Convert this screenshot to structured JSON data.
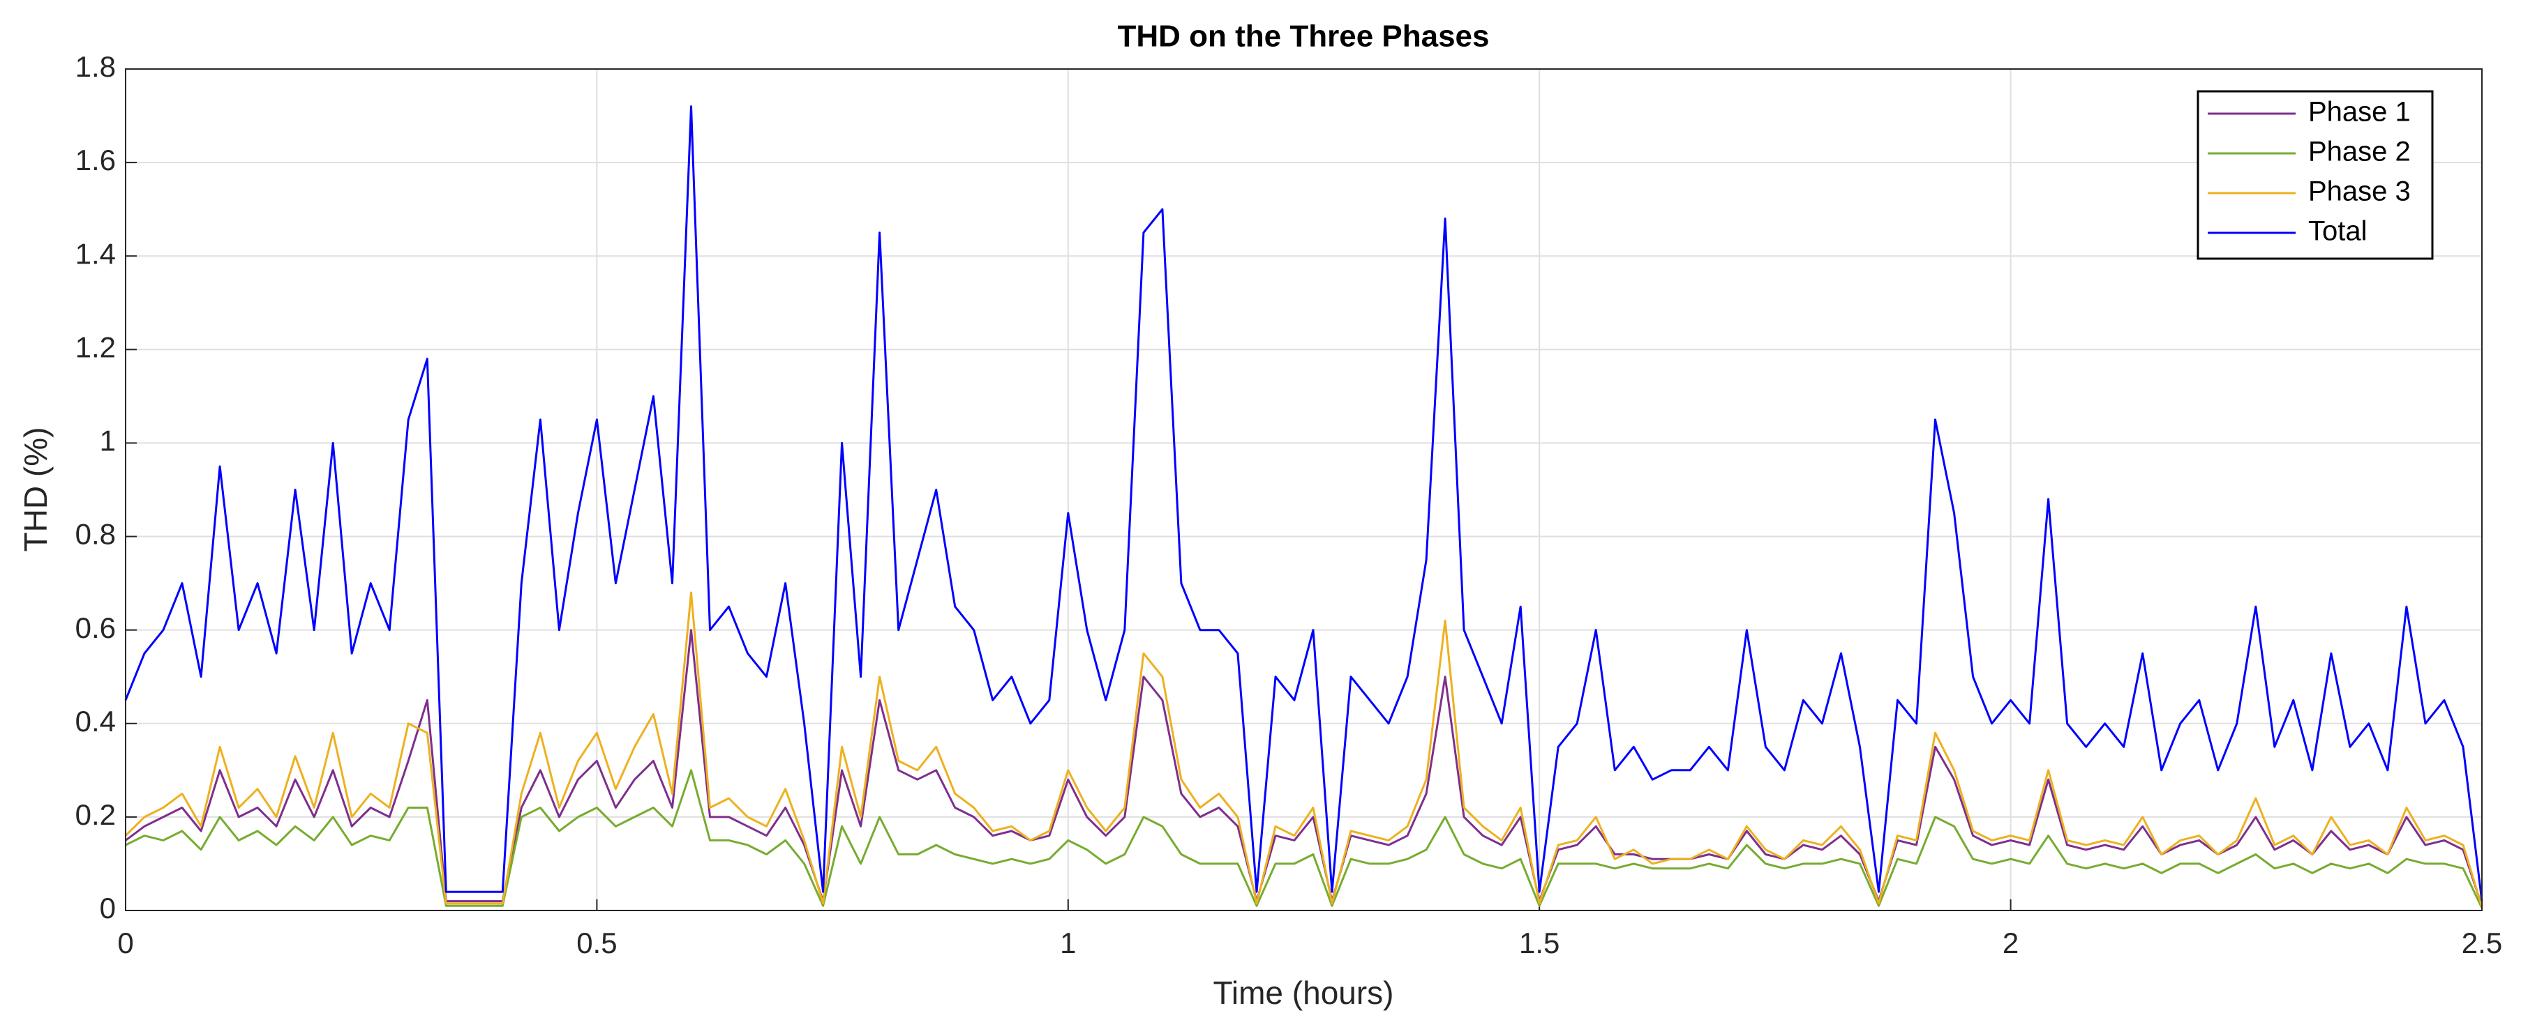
{
  "chart_data": {
    "type": "line",
    "title": "THD on the Three Phases",
    "xlabel": "Time (hours)",
    "ylabel": "THD (%)",
    "x": [
      0,
      0.02,
      0.04,
      0.06,
      0.08,
      0.1,
      0.12,
      0.14,
      0.16,
      0.18,
      0.2,
      0.22,
      0.24,
      0.26,
      0.28,
      0.3,
      0.32,
      0.34,
      0.36,
      0.38,
      0.4,
      0.42,
      0.44,
      0.46,
      0.48,
      0.5,
      0.52,
      0.54,
      0.56,
      0.58,
      0.6,
      0.62,
      0.64,
      0.66,
      0.68,
      0.7,
      0.72,
      0.74,
      0.76,
      0.78,
      0.8,
      0.82,
      0.84,
      0.86,
      0.88,
      0.9,
      0.92,
      0.94,
      0.96,
      0.98,
      1,
      1.02,
      1.04,
      1.06,
      1.08,
      1.1,
      1.12,
      1.14,
      1.16,
      1.18,
      1.2,
      1.22,
      1.24,
      1.26,
      1.28,
      1.3,
      1.32,
      1.34,
      1.36,
      1.38,
      1.4,
      1.42,
      1.44,
      1.46,
      1.48,
      1.5,
      1.52,
      1.54,
      1.56,
      1.58,
      1.6,
      1.62,
      1.64,
      1.66,
      1.68,
      1.7,
      1.72,
      1.74,
      1.76,
      1.78,
      1.8,
      1.82,
      1.84,
      1.86,
      1.88,
      1.9,
      1.92,
      1.94,
      1.96,
      1.98,
      2,
      2.02,
      2.04,
      2.06,
      2.08,
      2.1,
      2.12,
      2.14,
      2.16,
      2.18,
      2.2,
      2.22,
      2.24,
      2.26,
      2.28,
      2.3,
      2.32,
      2.34,
      2.36,
      2.38,
      2.4,
      2.42,
      2.44,
      2.46,
      2.48,
      2.5
    ],
    "series": [
      {
        "name": "Phase 1",
        "color": "#7E2F8E",
        "values": [
          0.15,
          0.18,
          0.2,
          0.22,
          0.17,
          0.3,
          0.2,
          0.22,
          0.18,
          0.28,
          0.2,
          0.3,
          0.18,
          0.22,
          0.2,
          0.32,
          0.45,
          0.02,
          0.02,
          0.02,
          0.02,
          0.22,
          0.3,
          0.2,
          0.28,
          0.32,
          0.22,
          0.28,
          0.32,
          0.22,
          0.6,
          0.2,
          0.2,
          0.18,
          0.16,
          0.22,
          0.14,
          0.02,
          0.3,
          0.18,
          0.45,
          0.3,
          0.28,
          0.3,
          0.22,
          0.2,
          0.16,
          0.17,
          0.15,
          0.16,
          0.28,
          0.2,
          0.16,
          0.2,
          0.5,
          0.45,
          0.25,
          0.2,
          0.22,
          0.18,
          0.02,
          0.16,
          0.15,
          0.2,
          0.02,
          0.16,
          0.15,
          0.14,
          0.16,
          0.25,
          0.5,
          0.2,
          0.16,
          0.14,
          0.2,
          0.02,
          0.13,
          0.14,
          0.18,
          0.12,
          0.12,
          0.11,
          0.11,
          0.11,
          0.12,
          0.11,
          0.17,
          0.12,
          0.11,
          0.14,
          0.13,
          0.16,
          0.12,
          0.02,
          0.15,
          0.14,
          0.35,
          0.28,
          0.16,
          0.14,
          0.15,
          0.14,
          0.28,
          0.14,
          0.13,
          0.14,
          0.13,
          0.18,
          0.12,
          0.14,
          0.15,
          0.12,
          0.14,
          0.2,
          0.13,
          0.15,
          0.12,
          0.17,
          0.13,
          0.14,
          0.12,
          0.2,
          0.14,
          0.15,
          0.13,
          0.01
        ]
      },
      {
        "name": "Phase 2",
        "color": "#77AC30",
        "values": [
          0.14,
          0.16,
          0.15,
          0.17,
          0.13,
          0.2,
          0.15,
          0.17,
          0.14,
          0.18,
          0.15,
          0.2,
          0.14,
          0.16,
          0.15,
          0.22,
          0.22,
          0.01,
          0.01,
          0.01,
          0.01,
          0.2,
          0.22,
          0.17,
          0.2,
          0.22,
          0.18,
          0.2,
          0.22,
          0.18,
          0.3,
          0.15,
          0.15,
          0.14,
          0.12,
          0.15,
          0.1,
          0.01,
          0.18,
          0.1,
          0.2,
          0.12,
          0.12,
          0.14,
          0.12,
          0.11,
          0.1,
          0.11,
          0.1,
          0.11,
          0.15,
          0.13,
          0.1,
          0.12,
          0.2,
          0.18,
          0.12,
          0.1,
          0.1,
          0.1,
          0.01,
          0.1,
          0.1,
          0.12,
          0.01,
          0.11,
          0.1,
          0.1,
          0.11,
          0.13,
          0.2,
          0.12,
          0.1,
          0.09,
          0.11,
          0.01,
          0.1,
          0.1,
          0.1,
          0.09,
          0.1,
          0.09,
          0.09,
          0.09,
          0.1,
          0.09,
          0.14,
          0.1,
          0.09,
          0.1,
          0.1,
          0.11,
          0.1,
          0.01,
          0.11,
          0.1,
          0.2,
          0.18,
          0.11,
          0.1,
          0.11,
          0.1,
          0.16,
          0.1,
          0.09,
          0.1,
          0.09,
          0.1,
          0.08,
          0.1,
          0.1,
          0.08,
          0.1,
          0.12,
          0.09,
          0.1,
          0.08,
          0.1,
          0.09,
          0.1,
          0.08,
          0.11,
          0.1,
          0.1,
          0.09,
          0.005
        ]
      },
      {
        "name": "Phase 3",
        "color": "#EDB120",
        "values": [
          0.16,
          0.2,
          0.22,
          0.25,
          0.18,
          0.35,
          0.22,
          0.26,
          0.2,
          0.33,
          0.22,
          0.38,
          0.2,
          0.25,
          0.22,
          0.4,
          0.38,
          0.015,
          0.015,
          0.015,
          0.015,
          0.25,
          0.38,
          0.22,
          0.32,
          0.38,
          0.26,
          0.35,
          0.42,
          0.25,
          0.68,
          0.22,
          0.24,
          0.2,
          0.18,
          0.26,
          0.15,
          0.015,
          0.35,
          0.2,
          0.5,
          0.32,
          0.3,
          0.35,
          0.25,
          0.22,
          0.17,
          0.18,
          0.15,
          0.17,
          0.3,
          0.22,
          0.17,
          0.22,
          0.55,
          0.5,
          0.28,
          0.22,
          0.25,
          0.2,
          0.015,
          0.18,
          0.16,
          0.22,
          0.015,
          0.17,
          0.16,
          0.15,
          0.18,
          0.28,
          0.62,
          0.22,
          0.18,
          0.15,
          0.22,
          0.015,
          0.14,
          0.15,
          0.2,
          0.11,
          0.13,
          0.1,
          0.11,
          0.11,
          0.13,
          0.11,
          0.18,
          0.13,
          0.11,
          0.15,
          0.14,
          0.18,
          0.13,
          0.015,
          0.16,
          0.15,
          0.38,
          0.3,
          0.17,
          0.15,
          0.16,
          0.15,
          0.3,
          0.15,
          0.14,
          0.15,
          0.14,
          0.2,
          0.12,
          0.15,
          0.16,
          0.12,
          0.15,
          0.24,
          0.14,
          0.16,
          0.12,
          0.2,
          0.14,
          0.15,
          0.12,
          0.22,
          0.15,
          0.16,
          0.14,
          0.008
        ]
      },
      {
        "name": "Total",
        "color": "#0000FF",
        "values": [
          0.45,
          0.55,
          0.6,
          0.7,
          0.5,
          0.95,
          0.6,
          0.7,
          0.55,
          0.9,
          0.6,
          1.0,
          0.55,
          0.7,
          0.6,
          1.05,
          1.18,
          0.04,
          0.04,
          0.04,
          0.04,
          0.7,
          1.05,
          0.6,
          0.85,
          1.05,
          0.7,
          0.9,
          1.1,
          0.7,
          1.72,
          0.6,
          0.65,
          0.55,
          0.5,
          0.7,
          0.4,
          0.04,
          1.0,
          0.5,
          1.45,
          0.6,
          0.75,
          0.9,
          0.65,
          0.6,
          0.45,
          0.5,
          0.4,
          0.45,
          0.85,
          0.6,
          0.45,
          0.6,
          1.45,
          1.5,
          0.7,
          0.6,
          0.6,
          0.55,
          0.04,
          0.5,
          0.45,
          0.6,
          0.04,
          0.5,
          0.45,
          0.4,
          0.5,
          0.75,
          1.48,
          0.6,
          0.5,
          0.4,
          0.65,
          0.04,
          0.35,
          0.4,
          0.6,
          0.3,
          0.35,
          0.28,
          0.3,
          0.3,
          0.35,
          0.3,
          0.6,
          0.35,
          0.3,
          0.45,
          0.4,
          0.55,
          0.35,
          0.04,
          0.45,
          0.4,
          1.05,
          0.85,
          0.5,
          0.4,
          0.45,
          0.4,
          0.88,
          0.4,
          0.35,
          0.4,
          0.35,
          0.55,
          0.3,
          0.4,
          0.45,
          0.3,
          0.4,
          0.65,
          0.35,
          0.45,
          0.3,
          0.55,
          0.35,
          0.4,
          0.3,
          0.65,
          0.4,
          0.45,
          0.35,
          0.02
        ]
      }
    ],
    "xlim": [
      0,
      2.5
    ],
    "xticks": [
      0,
      0.5,
      1,
      1.5,
      2,
      2.5
    ],
    "ylim": [
      0,
      1.8
    ],
    "yticks": [
      0,
      0.2,
      0.4,
      0.6,
      0.8,
      1,
      1.2,
      1.4,
      1.6,
      1.8
    ],
    "grid": true,
    "legend": "northeast"
  }
}
